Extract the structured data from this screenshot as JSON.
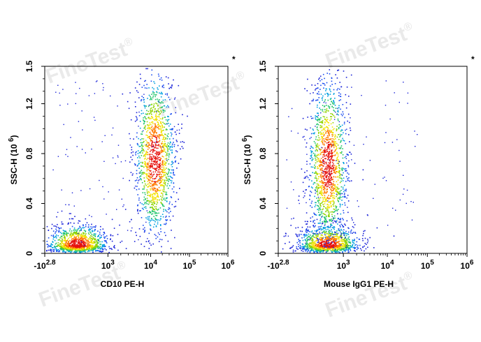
{
  "watermark": {
    "text": "FineTest",
    "mark": "®"
  },
  "chart_data": [
    {
      "type": "scatter",
      "name": "panel-cd10",
      "title": "",
      "corner_mark": "*",
      "xlabel": "CD10 PE-H",
      "ylabel": "SSC-H",
      "ylabel_unit": "(10",
      "ylabel_exp": "6",
      "ylabel_close": ")",
      "x_scale": "biexponential-log",
      "xlim": [
        "-10^2.8",
        "10^6"
      ],
      "ylim": [
        0,
        1.5
      ],
      "x_ticks": [
        {
          "base": "-10",
          "exp": "2.8"
        },
        {
          "base": "10",
          "exp": "3"
        },
        {
          "base": "10",
          "exp": "4"
        },
        {
          "base": "10",
          "exp": "5"
        },
        {
          "base": "10",
          "exp": "6"
        }
      ],
      "y_ticks": [
        "0",
        "0.4",
        "0.8",
        "1.2",
        "1.5"
      ],
      "grid": false,
      "color_scale": "density (blue-green-yellow-red)",
      "populations": [
        {
          "x_center_log10": 2.6,
          "y_center": 0.07,
          "events": "dense",
          "note": "CD10-negative"
        },
        {
          "x_center_log10": 4.1,
          "y_center": 0.75,
          "events": "dense",
          "note": "CD10-positive"
        }
      ]
    },
    {
      "type": "scatter",
      "name": "panel-isotype",
      "title": "",
      "corner_mark": "*",
      "xlabel": "Mouse IgG1 PE-H",
      "ylabel": "SSC-H",
      "ylabel_unit": "(10",
      "ylabel_exp": "6",
      "ylabel_close": ")",
      "x_scale": "biexponential-log",
      "xlim": [
        "-10^2.8",
        "10^6"
      ],
      "ylim": [
        0,
        1.5
      ],
      "x_ticks": [
        {
          "base": "-10",
          "exp": "2.8"
        },
        {
          "base": "10",
          "exp": "3"
        },
        {
          "base": "10",
          "exp": "4"
        },
        {
          "base": "10",
          "exp": "5"
        },
        {
          "base": "10",
          "exp": "6"
        }
      ],
      "y_ticks": [
        "0",
        "0.4",
        "0.8",
        "1.2",
        "1.5"
      ],
      "grid": false,
      "color_scale": "density (blue-green-yellow-red)",
      "populations": [
        {
          "x_center_log10": 2.8,
          "y_center": 0.07,
          "events": "dense"
        },
        {
          "x_center_log10": 2.8,
          "y_center": 0.7,
          "events": "dense"
        }
      ]
    }
  ]
}
